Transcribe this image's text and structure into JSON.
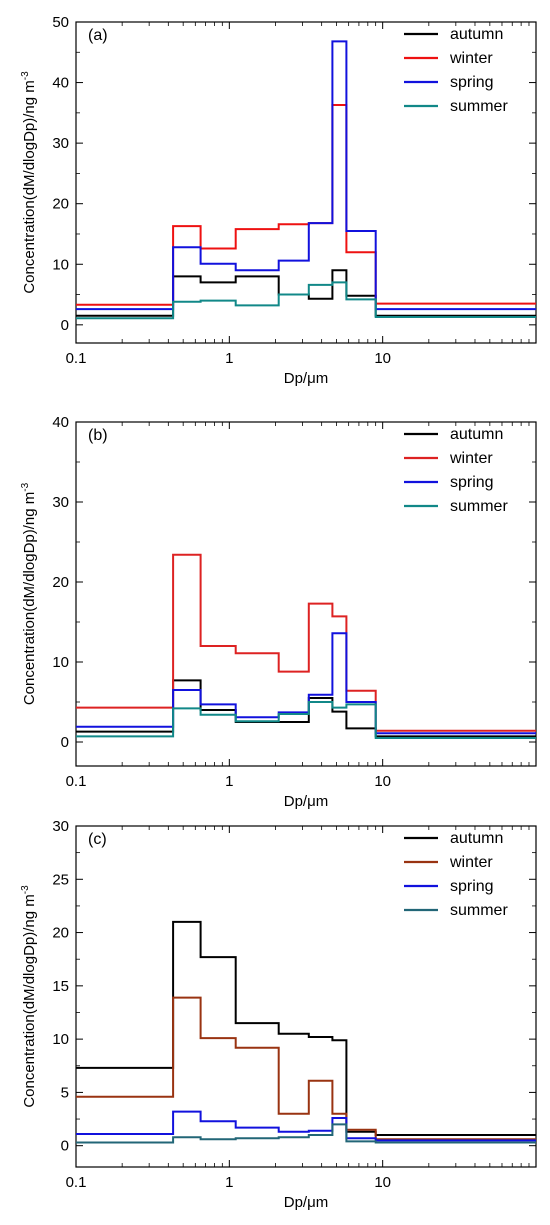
{
  "chart_data": [
    {
      "type": "line",
      "panel_label": "(a)",
      "xlabel": "Dp/μm",
      "ylabel": "Concentration(dM/dlogDp)/ng m",
      "ylabel_sup": "-3",
      "xscale": "log",
      "xlim": [
        0.1,
        100
      ],
      "ylim": [
        -3,
        50
      ],
      "x_ticks": [
        0.1,
        1,
        10
      ],
      "x_tick_labels": [
        "0.1",
        "1",
        "10"
      ],
      "y_ticks": [
        0,
        10,
        20,
        30,
        40,
        50
      ],
      "y_tick_labels": [
        "0",
        "10",
        "20",
        "30",
        "40",
        "50"
      ],
      "legend_position": "top-right",
      "bin_edges": [
        0.1,
        0.43,
        0.65,
        1.1,
        2.1,
        3.3,
        4.7,
        5.8,
        9.0,
        100
      ],
      "series": [
        {
          "name": "autumn",
          "color": "#000000",
          "values": [
            1.5,
            8.0,
            7.0,
            8.0,
            5.0,
            4.3,
            9.0,
            4.8,
            1.5
          ]
        },
        {
          "name": "winter",
          "color": "#ee1111",
          "values": [
            3.3,
            16.3,
            12.6,
            15.8,
            16.6,
            16.8,
            36.3,
            12.0,
            3.5
          ]
        },
        {
          "name": "spring",
          "color": "#1111dd",
          "values": [
            2.6,
            12.8,
            10.1,
            9.0,
            10.6,
            16.8,
            46.8,
            15.5,
            2.6
          ]
        },
        {
          "name": "summer",
          "color": "#118888",
          "values": [
            1.1,
            3.8,
            4.0,
            3.2,
            5.0,
            6.6,
            7.0,
            4.2,
            1.3
          ]
        }
      ]
    },
    {
      "type": "line",
      "panel_label": "(b)",
      "xlabel": "Dp/μm",
      "ylabel": "Concentration(dM/dlogDp)/ng m",
      "ylabel_sup": "-3",
      "xscale": "log",
      "xlim": [
        0.1,
        100
      ],
      "ylim": [
        -3,
        40
      ],
      "x_ticks": [
        0.1,
        1,
        10
      ],
      "x_tick_labels": [
        "0.1",
        "1",
        "10"
      ],
      "y_ticks": [
        0,
        10,
        20,
        30,
        40
      ],
      "y_tick_labels": [
        "0",
        "10",
        "20",
        "30",
        "40"
      ],
      "legend_position": "top-right",
      "bin_edges": [
        0.1,
        0.43,
        0.65,
        1.1,
        2.1,
        3.3,
        4.7,
        5.8,
        9.0,
        100
      ],
      "series": [
        {
          "name": "autumn",
          "color": "#000000",
          "values": [
            1.3,
            7.7,
            4.0,
            2.5,
            2.5,
            5.5,
            3.8,
            1.7,
            0.7
          ]
        },
        {
          "name": "winter",
          "color": "#dd2222",
          "values": [
            4.3,
            23.4,
            12.0,
            11.1,
            8.8,
            17.3,
            15.7,
            6.4,
            1.4
          ]
        },
        {
          "name": "spring",
          "color": "#1111dd",
          "values": [
            1.9,
            6.5,
            4.7,
            3.1,
            3.7,
            5.9,
            13.6,
            5.0,
            1.1
          ]
        },
        {
          "name": "summer",
          "color": "#118888",
          "values": [
            0.7,
            4.2,
            3.4,
            2.6,
            3.5,
            5.0,
            4.3,
            4.7,
            0.5
          ]
        }
      ]
    },
    {
      "type": "line",
      "panel_label": "(c)",
      "xlabel": "Dp/μm",
      "ylabel": "Concentration(dM/dlogDp)/ng m",
      "ylabel_sup": "-3",
      "xscale": "log",
      "xlim": [
        0.1,
        100
      ],
      "ylim": [
        -2,
        30
      ],
      "x_ticks": [
        0.1,
        1,
        10
      ],
      "x_tick_labels": [
        "0.1",
        "1",
        "10"
      ],
      "y_ticks": [
        0,
        5,
        10,
        15,
        20,
        25,
        30
      ],
      "y_tick_labels": [
        "0",
        "5",
        "10",
        "15",
        "20",
        "25",
        "30"
      ],
      "legend_position": "top-right",
      "bin_edges": [
        0.1,
        0.43,
        0.65,
        1.1,
        2.1,
        3.3,
        4.7,
        5.8,
        9.0,
        100
      ],
      "series": [
        {
          "name": "autumn",
          "color": "#000000",
          "values": [
            7.3,
            21.0,
            17.7,
            11.5,
            10.5,
            10.2,
            9.9,
            1.3,
            1.0
          ]
        },
        {
          "name": "winter",
          "color": "#993311",
          "values": [
            4.6,
            13.9,
            10.1,
            9.2,
            3.0,
            6.1,
            3.0,
            1.5,
            0.6
          ]
        },
        {
          "name": "spring",
          "color": "#1111dd",
          "values": [
            1.1,
            3.2,
            2.3,
            1.7,
            1.3,
            1.4,
            2.6,
            0.7,
            0.5
          ]
        },
        {
          "name": "summer",
          "color": "#226677",
          "values": [
            0.3,
            0.8,
            0.6,
            0.7,
            0.8,
            1.0,
            2.0,
            0.4,
            0.3
          ]
        }
      ]
    }
  ]
}
